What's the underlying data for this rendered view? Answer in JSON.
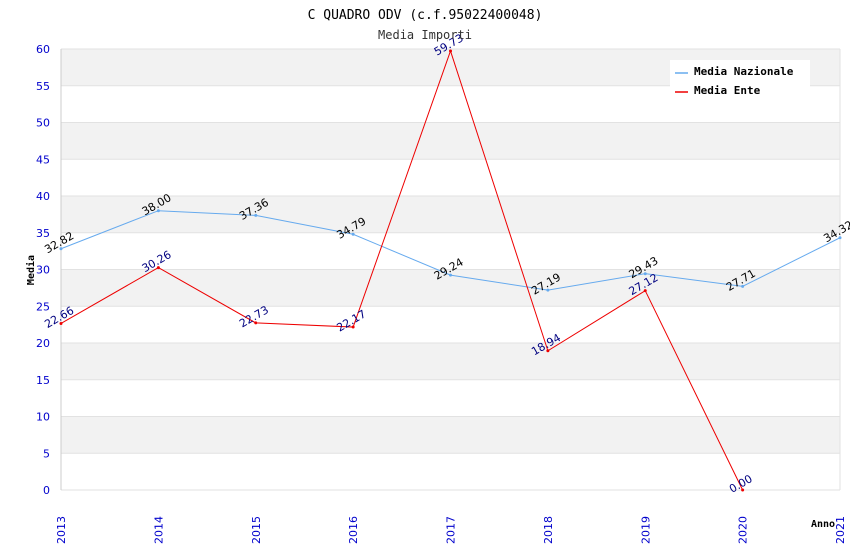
{
  "chart_data": {
    "type": "line",
    "title": "C QUADRO ODV (c.f.95022400048)",
    "subtitle": "Media Importi",
    "xlabel": "Anno",
    "ylabel": "Media",
    "categories": [
      "2013",
      "2014",
      "2015",
      "2016",
      "2017",
      "2018",
      "2019",
      "2020",
      "2021"
    ],
    "ylim": [
      0,
      60
    ],
    "yticks": [
      0,
      5,
      10,
      15,
      20,
      25,
      30,
      35,
      40,
      45,
      50,
      55,
      60
    ],
    "grid": true,
    "legend_position": "top-right",
    "series": [
      {
        "name": "Media Nazionale",
        "color": "#66aaee",
        "label_color": "#000000",
        "values": [
          32.82,
          38.0,
          37.36,
          34.79,
          29.24,
          27.19,
          29.43,
          27.71,
          34.32
        ],
        "labels": [
          "32.82",
          "38.00",
          "37.36",
          "34.79",
          "29.24",
          "27.19",
          "29.43",
          "27.71",
          "34.32"
        ]
      },
      {
        "name": "Media Ente",
        "color": "#ee0000",
        "label_color": "#000080",
        "values": [
          22.66,
          30.26,
          22.73,
          22.17,
          59.73,
          18.94,
          27.12,
          0.0,
          null
        ],
        "labels": [
          "22.66",
          "30.26",
          "22.73",
          "22.17",
          "59.73",
          "18.94",
          "27.12",
          "0.00",
          null
        ]
      }
    ]
  }
}
